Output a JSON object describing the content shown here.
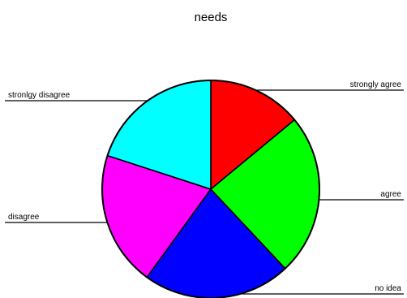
{
  "chart_data": {
    "type": "pie",
    "title": "needs",
    "slices": [
      {
        "label": "strongly agree",
        "value": 14,
        "color": "#ff0000"
      },
      {
        "label": "agree",
        "value": 24,
        "color": "#00ff00"
      },
      {
        "label": "no idea",
        "value": 22,
        "color": "#0000ff"
      },
      {
        "label": "disagree",
        "value": 20,
        "color": "#ff00ff"
      },
      {
        "label": "stronlgy disagree",
        "value": 20,
        "color": "#00ffff"
      }
    ],
    "legend": "leader-lines"
  }
}
